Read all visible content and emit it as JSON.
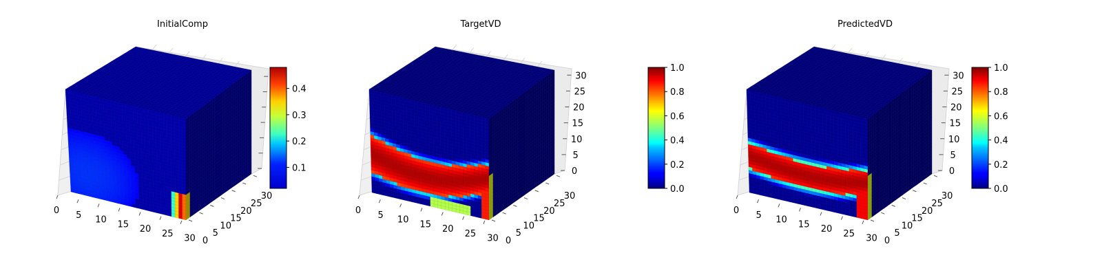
{
  "chart_data": [
    {
      "type": "voxel3d",
      "title": "InitialComp",
      "colormap": "jet",
      "x_ticks": [
        "0",
        "5",
        "10",
        "15",
        "20",
        "25",
        "30"
      ],
      "y_ticks": [
        "0",
        "5",
        "10",
        "15",
        "20",
        "25",
        "30"
      ],
      "z_ticks": [],
      "colorbar": {
        "range": [
          0.02,
          0.48
        ],
        "ticks": [
          "0.1",
          "0.2",
          "0.3",
          "0.4"
        ],
        "tick_values": [
          0.1,
          0.2,
          0.3,
          0.4
        ]
      },
      "field": {
        "base": 0.04,
        "blob_value": 0.1,
        "hot_value": 0.45
      }
    },
    {
      "type": "voxel3d",
      "title": "TargetVD",
      "colormap": "jet",
      "x_ticks": [
        "0",
        "5",
        "10",
        "15",
        "20",
        "25",
        "30"
      ],
      "y_ticks": [
        "0",
        "5",
        "10",
        "15",
        "20",
        "25",
        "30"
      ],
      "z_ticks": [
        "0",
        "5",
        "10",
        "15",
        "20",
        "25",
        "30"
      ],
      "colorbar": {
        "range": [
          0.0,
          1.0
        ],
        "ticks": [
          "0.0",
          "0.2",
          "0.4",
          "0.6",
          "0.8",
          "1.0"
        ],
        "tick_values": [
          0,
          0.2,
          0.4,
          0.6,
          0.8,
          1.0
        ]
      },
      "field": {
        "base": 0.02,
        "band_value": 0.95
      }
    },
    {
      "type": "voxel3d",
      "title": "PredictedVD",
      "colormap": "jet",
      "x_ticks": [
        "0",
        "5",
        "10",
        "15",
        "20",
        "25",
        "30"
      ],
      "y_ticks": [
        "0",
        "5",
        "10",
        "15",
        "20",
        "25",
        "30"
      ],
      "z_ticks": [
        "0",
        "5",
        "10",
        "15",
        "20",
        "25",
        "30"
      ],
      "colorbar": {
        "range": [
          0.0,
          1.0
        ],
        "ticks": [
          "0.0",
          "0.2",
          "0.4",
          "0.6",
          "0.8",
          "1.0"
        ],
        "tick_values": [
          0,
          0.2,
          0.4,
          0.6,
          0.8,
          1.0
        ]
      },
      "field": {
        "base": 0.02,
        "band_value": 0.95
      }
    }
  ]
}
